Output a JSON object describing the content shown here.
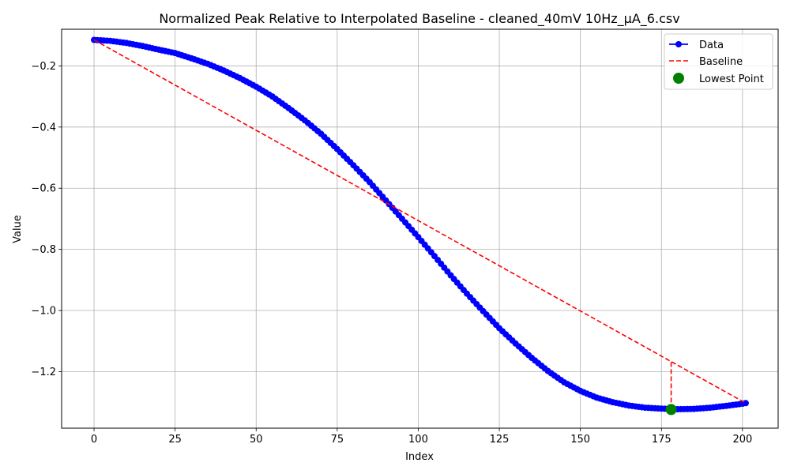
{
  "chart_data": {
    "type": "line",
    "title": "Normalized Peak Relative to Interpolated Baseline - cleaned_40mV 10Hz_µA_6.csv",
    "xlabel": "Index",
    "ylabel": "Value",
    "xlim": [
      -10,
      211
    ],
    "ylim": [
      -1.385,
      -0.08
    ],
    "x_ticks": [
      0,
      25,
      50,
      75,
      100,
      125,
      150,
      175,
      200
    ],
    "y_ticks": [
      -0.2,
      -0.4,
      -0.6,
      -0.8,
      -1.0,
      -1.2
    ],
    "y_tick_labels": [
      "−0.2",
      "−0.4",
      "−0.6",
      "−0.8",
      "−1.0",
      "−1.2"
    ],
    "grid": true,
    "legend_position": "top-right",
    "series": [
      {
        "name": "Data",
        "style": "line-with-markers",
        "color": "#0000ff",
        "x": [
          0,
          5,
          10,
          15,
          20,
          25,
          30,
          35,
          40,
          45,
          50,
          55,
          60,
          65,
          70,
          75,
          80,
          85,
          90,
          95,
          100,
          105,
          110,
          115,
          120,
          125,
          130,
          135,
          140,
          145,
          150,
          155,
          160,
          165,
          170,
          175,
          178,
          180,
          185,
          190,
          195,
          200,
          201
        ],
        "y": [
          -0.115,
          -0.118,
          -0.125,
          -0.135,
          -0.147,
          -0.158,
          -0.175,
          -0.193,
          -0.215,
          -0.24,
          -0.268,
          -0.3,
          -0.338,
          -0.378,
          -0.422,
          -0.472,
          -0.525,
          -0.58,
          -0.64,
          -0.7,
          -0.76,
          -0.822,
          -0.885,
          -0.945,
          -1.002,
          -1.058,
          -1.108,
          -1.155,
          -1.198,
          -1.235,
          -1.263,
          -1.285,
          -1.3,
          -1.311,
          -1.318,
          -1.321,
          -1.322,
          -1.323,
          -1.322,
          -1.318,
          -1.312,
          -1.305,
          -1.303
        ]
      },
      {
        "name": "Baseline",
        "style": "dashed",
        "color": "#ff0000",
        "x": [
          0,
          201
        ],
        "y": [
          -0.115,
          -1.303
        ]
      },
      {
        "name": "Lowest Point",
        "style": "scatter",
        "color": "#008000",
        "x": [
          178
        ],
        "y": [
          -1.324
        ]
      }
    ],
    "annotations": [
      {
        "type": "vertical-dashed-line",
        "color": "#ff0000",
        "x": 178,
        "y_from": -1.324,
        "y_to": -1.167
      }
    ]
  }
}
